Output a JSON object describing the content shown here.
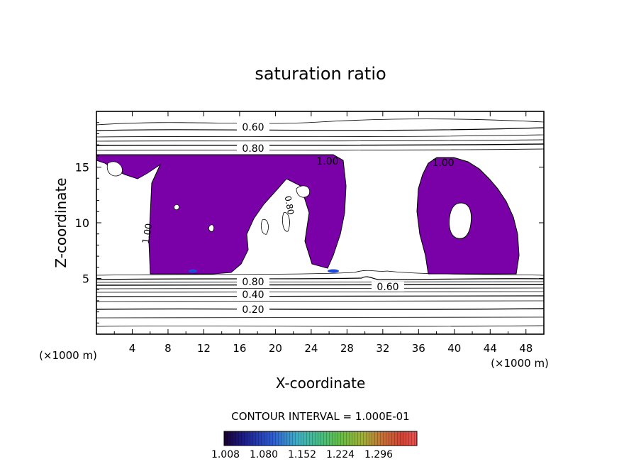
{
  "chart_data": {
    "type": "contour",
    "title": "saturation ratio",
    "xlabel": "X-coordinate",
    "ylabel": "Z-coordinate",
    "x_unit_label": "(×1000 m)",
    "y_unit_label": "(×1000 m)",
    "xlim": [
      0,
      50
    ],
    "ylim": [
      0,
      20
    ],
    "x_ticks": [
      "4",
      "8",
      "12",
      "16",
      "20",
      "24",
      "28",
      "32",
      "36",
      "40",
      "44",
      "48"
    ],
    "y_ticks": [
      "5",
      "10",
      "15"
    ],
    "contour_labels": [
      "0.60",
      "0.80",
      "1.00",
      "1.00",
      "0.80",
      "0.60",
      "0.40",
      "0.20",
      "0.80",
      "1.00"
    ],
    "contour_interval_text": "CONTOUR INTERVAL = 1.000E-01",
    "colorbar_ticks": [
      "1.008",
      "1.080",
      "1.152",
      "1.224",
      "1.296"
    ],
    "supersaturated_fill_color": "#7a00a8",
    "colorbar_colors": [
      "#1a0030",
      "#1a1a8c",
      "#2a5ad8",
      "#3ab0c8",
      "#40c080",
      "#60c040",
      "#a0b030",
      "#c87030",
      "#d84030",
      "#f05050"
    ]
  }
}
